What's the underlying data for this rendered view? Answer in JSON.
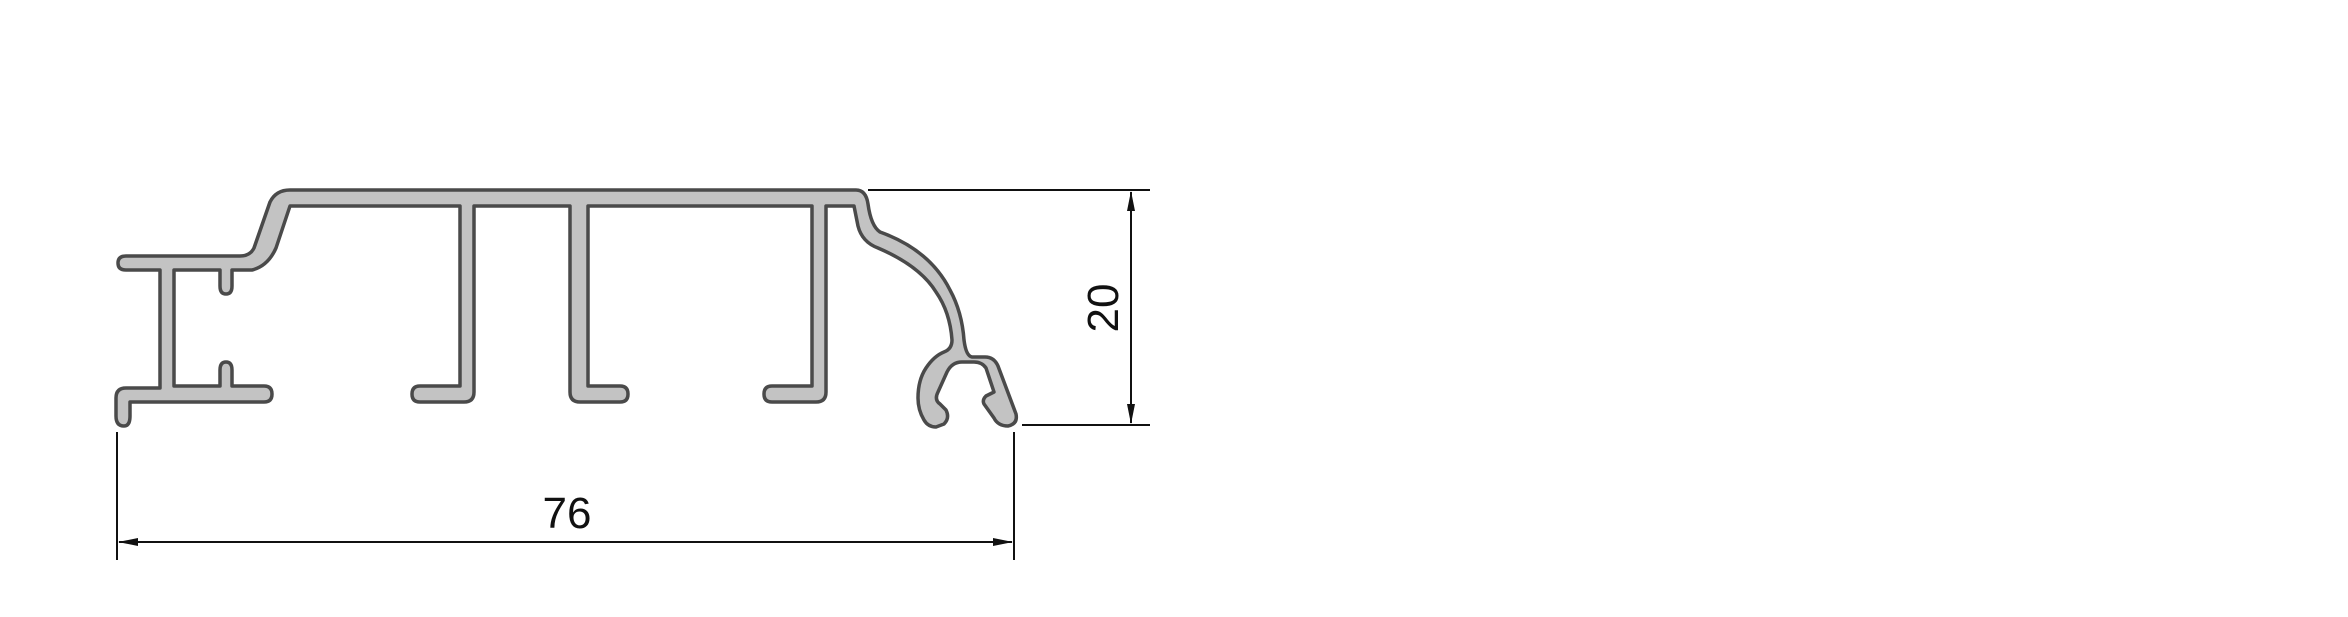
{
  "drawing": {
    "description_label": "",
    "dimensions": {
      "width_label": "76",
      "height_label": "20"
    },
    "colors": {
      "profile_fill": "#c3c3c3",
      "profile_stroke": "#4a4a4a",
      "dimension_line": "#111111"
    }
  }
}
